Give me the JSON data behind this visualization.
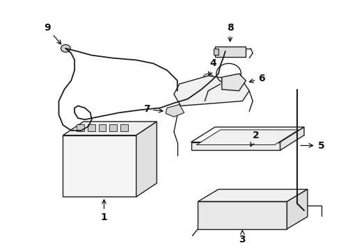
{
  "background_color": "#ffffff",
  "line_color": "#1a1a1a",
  "label_color": "#111111",
  "fig_width": 4.9,
  "fig_height": 3.6,
  "dpi": 100,
  "font_size": 10,
  "lw": 1.0
}
